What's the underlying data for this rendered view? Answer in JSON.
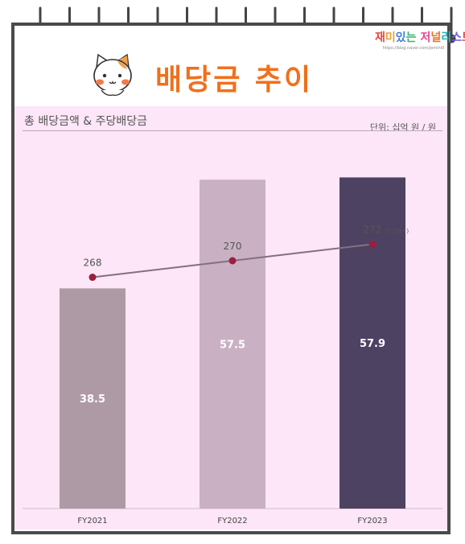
{
  "header": {
    "title": "배당금 추이",
    "blog_name": "재미있는 저널리스트",
    "blog_url": "https://blog.naver.com/jemini0"
  },
  "chart_data": {
    "type": "bar",
    "title": "총 배당금액 & 주당배당금",
    "unit": "단위: 십억 원 / 원",
    "categories": [
      "FY2021",
      "FY2022",
      "FY2023"
    ],
    "series": [
      {
        "type": "bar",
        "values": [
          38.5,
          57.5,
          57.9
        ],
        "labels": [
          "38.5",
          "57.5",
          "57.9"
        ],
        "colors": [
          "#ae9aa5",
          "#c9b1c3",
          "#4e4263"
        ]
      },
      {
        "type": "line",
        "values": [
          268,
          270,
          272
        ],
        "labels": [
          "268",
          "270",
          "272"
        ],
        "color": "#836f86",
        "marker_color": "#9b1f3f"
      }
    ],
    "growth_annotation": "(7.2%↑)",
    "bar_ylim": [
      0,
      65
    ],
    "line_ylim": [
      240,
      285
    ]
  }
}
